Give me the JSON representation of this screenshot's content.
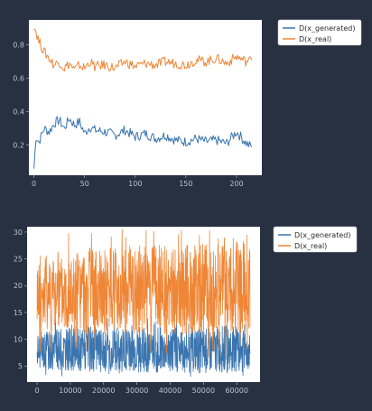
{
  "colors": {
    "background": "#283142",
    "plot_bg": "#ffffff",
    "tick_text": "#b8c2d2",
    "generated": "#3b75af",
    "real": "#ef8636"
  },
  "chart_data": [
    {
      "type": "line",
      "xlim": [
        -5,
        225
      ],
      "ylim": [
        0.02,
        0.95
      ],
      "x_ticks": [
        "0",
        "50",
        "100",
        "150",
        "200"
      ],
      "x_tick_values": [
        0,
        50,
        100,
        150,
        200
      ],
      "y_ticks": [
        "0.2",
        "0.4",
        "0.6",
        "0.8"
      ],
      "y_tick_values": [
        0.2,
        0.4,
        0.6,
        0.8
      ],
      "legend_position": "outside-right",
      "series": [
        {
          "name": "D(x_generated)",
          "color": "#3b75af",
          "x": [
            0,
            2,
            5,
            10,
            15,
            20,
            25,
            30,
            35,
            40,
            45,
            50,
            55,
            60,
            70,
            80,
            90,
            100,
            110,
            120,
            130,
            140,
            150,
            160,
            170,
            180,
            190,
            200,
            210,
            215
          ],
          "values": [
            0.06,
            0.25,
            0.22,
            0.3,
            0.28,
            0.33,
            0.35,
            0.3,
            0.36,
            0.32,
            0.34,
            0.27,
            0.31,
            0.29,
            0.28,
            0.26,
            0.29,
            0.25,
            0.27,
            0.24,
            0.26,
            0.23,
            0.22,
            0.24,
            0.22,
            0.23,
            0.21,
            0.28,
            0.21,
            0.19
          ]
        },
        {
          "name": "D(x_real)",
          "color": "#ef8636",
          "x": [
            0,
            2,
            5,
            10,
            15,
            20,
            25,
            30,
            35,
            40,
            45,
            50,
            55,
            60,
            70,
            80,
            90,
            100,
            110,
            120,
            130,
            140,
            150,
            160,
            170,
            180,
            190,
            200,
            210,
            215
          ],
          "values": [
            0.92,
            0.88,
            0.82,
            0.76,
            0.72,
            0.68,
            0.7,
            0.66,
            0.69,
            0.65,
            0.68,
            0.66,
            0.7,
            0.67,
            0.68,
            0.66,
            0.7,
            0.67,
            0.69,
            0.68,
            0.7,
            0.69,
            0.68,
            0.71,
            0.7,
            0.72,
            0.69,
            0.73,
            0.7,
            0.71
          ]
        }
      ]
    },
    {
      "type": "line",
      "xlim": [
        -3000,
        67000
      ],
      "ylim": [
        2,
        31
      ],
      "x_ticks": [
        "0",
        "10000",
        "20000",
        "30000",
        "40000",
        "50000",
        "60000"
      ],
      "x_tick_values": [
        0,
        10000,
        20000,
        30000,
        40000,
        50000,
        60000
      ],
      "y_ticks": [
        "5",
        "10",
        "15",
        "20",
        "25",
        "30"
      ],
      "y_tick_values": [
        5,
        10,
        15,
        20,
        25,
        30
      ],
      "legend_position": "outside-right",
      "series": [
        {
          "name": "D(x_generated)",
          "color": "#3b75af",
          "x_range": [
            0,
            64000
          ],
          "band_low": [
            4.5,
            4.2,
            4.0,
            3.8,
            4.0,
            3.7,
            3.9,
            3.5,
            3.8,
            4.0
          ],
          "band_high": [
            11.5,
            12.0,
            12.5,
            12.0,
            12.8,
            12.2,
            12.5,
            12.0,
            12.6,
            11.8
          ],
          "spike_min": 3.0,
          "spike_max": 14.0
        },
        {
          "name": "D(x_real)",
          "color": "#ef8636",
          "x_range": [
            0,
            64000
          ],
          "band_low": [
            12.0,
            11.5,
            11.0,
            11.2,
            11.0,
            10.8,
            11.0,
            10.5,
            10.8,
            11.0
          ],
          "band_high": [
            26.0,
            26.5,
            27.0,
            27.0,
            27.5,
            27.5,
            28.0,
            28.0,
            28.5,
            28.5
          ],
          "spike_min": 6.5,
          "spike_max": 30.5
        }
      ]
    }
  ]
}
